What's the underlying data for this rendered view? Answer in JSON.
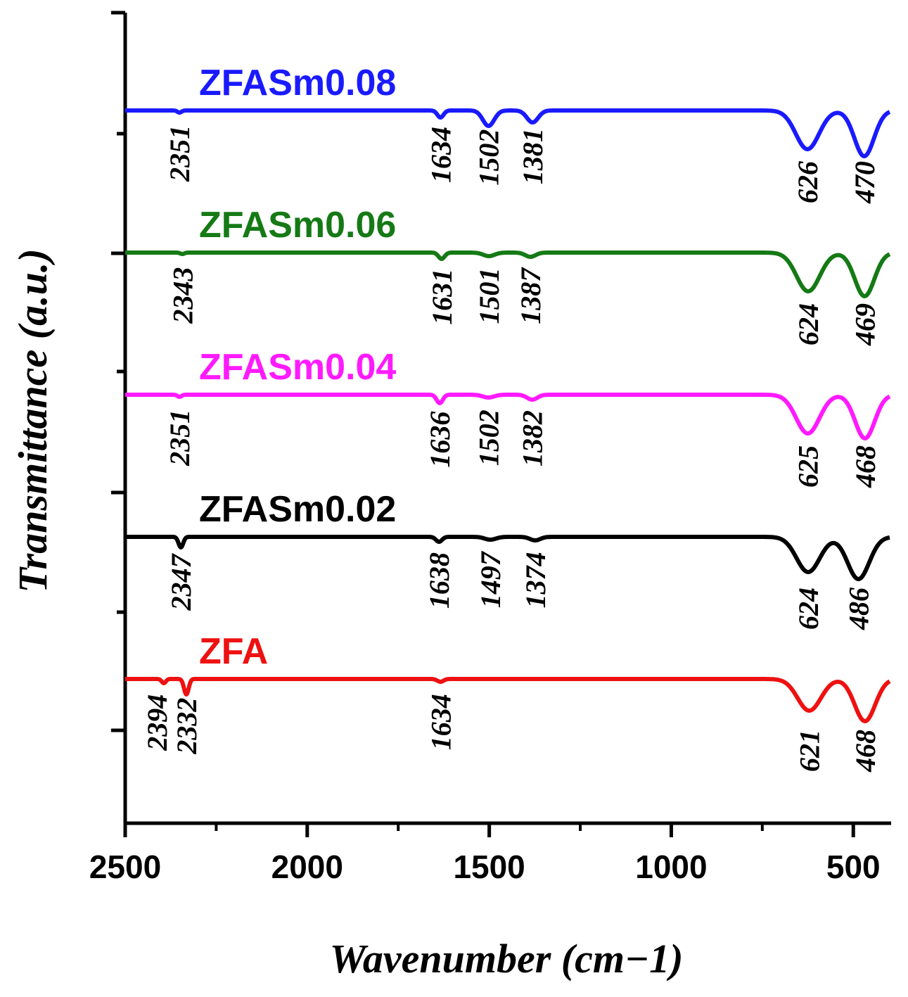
{
  "chart_data": {
    "type": "line",
    "title": "",
    "xlabel": "Wavenumber (cm−1)",
    "ylabel": "Transmittance (a.u.)",
    "xlim": [
      2500,
      400
    ],
    "x_reversed": true,
    "xticks": [
      2500,
      2000,
      1500,
      1000,
      500
    ],
    "xtick_labels": [
      "2500",
      "2000",
      "1500",
      "1000",
      "500"
    ],
    "y_ticks_unlabeled": true,
    "legend": "inline labels above each curve",
    "series": [
      {
        "name": "ZFASm0.08",
        "color": "#1a1aff",
        "baseline": 4,
        "dips": [
          [
            2351,
            0.03,
            8
          ],
          [
            1634,
            0.1,
            12
          ],
          [
            1502,
            0.22,
            22
          ],
          [
            1381,
            0.17,
            22
          ],
          [
            626,
            0.55,
            45
          ],
          [
            470,
            0.65,
            38
          ]
        ],
        "peaks": [
          "2351",
          "1634",
          "1502",
          "1381",
          "626",
          "470"
        ]
      },
      {
        "name": "ZFASm0.06",
        "color": "#157a15",
        "baseline": 3,
        "dips": [
          [
            2343,
            0.02,
            8
          ],
          [
            1631,
            0.09,
            12
          ],
          [
            1501,
            0.05,
            22
          ],
          [
            1387,
            0.06,
            20
          ],
          [
            624,
            0.55,
            45
          ],
          [
            469,
            0.62,
            38
          ]
        ],
        "peaks": [
          "2343",
          "1631",
          "1501",
          "1387",
          "624",
          "469"
        ]
      },
      {
        "name": "ZFASm0.04",
        "color": "#ff1aff",
        "baseline": 2,
        "dips": [
          [
            2351,
            0.03,
            8
          ],
          [
            1636,
            0.12,
            12
          ],
          [
            1502,
            0.04,
            22
          ],
          [
            1382,
            0.07,
            20
          ],
          [
            625,
            0.55,
            45
          ],
          [
            468,
            0.62,
            38
          ]
        ],
        "peaks": [
          "2351",
          "1636",
          "1502",
          "1382",
          "625",
          "468"
        ]
      },
      {
        "name": "ZFASm0.02",
        "color": "#000000",
        "baseline": 1,
        "dips": [
          [
            2347,
            0.15,
            9
          ],
          [
            1638,
            0.07,
            12
          ],
          [
            1497,
            0.04,
            22
          ],
          [
            1374,
            0.05,
            20
          ],
          [
            624,
            0.5,
            45
          ],
          [
            486,
            0.6,
            42
          ]
        ],
        "peaks": [
          "2347",
          "1638",
          "1497",
          "1374",
          "624",
          "486"
        ]
      },
      {
        "name": "ZFA",
        "color": "#ee1111",
        "baseline": 0,
        "dips": [
          [
            2394,
            0.06,
            8
          ],
          [
            2332,
            0.22,
            9
          ],
          [
            1634,
            0.04,
            12
          ],
          [
            621,
            0.45,
            45
          ],
          [
            468,
            0.6,
            40
          ]
        ],
        "peaks": [
          "2394",
          "2332",
          "1634",
          "621",
          "468"
        ]
      }
    ]
  }
}
